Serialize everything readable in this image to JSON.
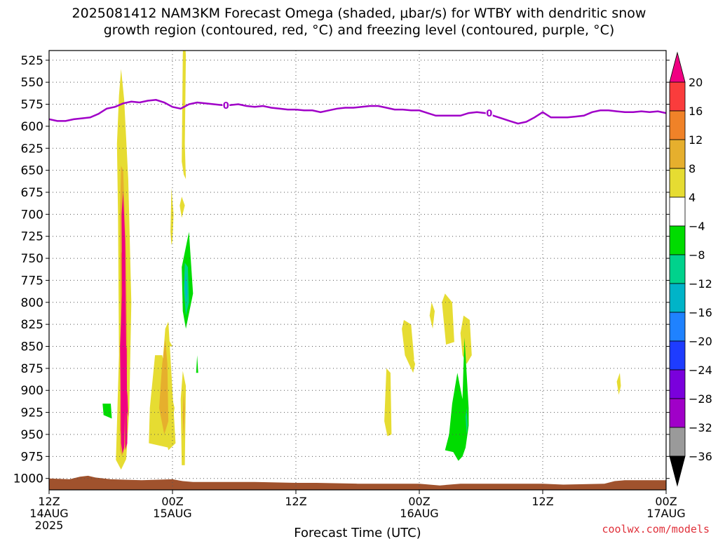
{
  "title": {
    "line1": "2025081412 NAM3KM Forecast Omega (shaded, μbar/s) for WTBY with dendritic snow",
    "line2": "growth region (contoured, red, °C) and freezing level (contoured, purple, °C)"
  },
  "credit": "coolwx.com/models",
  "chart_data": {
    "type": "heatmap",
    "title": "2025081412 NAM3KM Forecast Omega (shaded, μbar/s) for WTBY with dendritic snow growth region (contoured, red, °C) and freezing level (contoured, purple, °C)",
    "xlabel": "Forecast Time (UTC)",
    "ylabel": "",
    "x_unit": "hours from 12Z 14AUG 2025",
    "xlim": [
      0,
      60
    ],
    "ylim": [
      1013,
      500
    ],
    "x_ticks": [
      {
        "x": 0,
        "lines": [
          "12Z",
          "14AUG",
          "2025"
        ]
      },
      {
        "x": 12,
        "lines": [
          "00Z",
          "15AUG"
        ]
      },
      {
        "x": 24,
        "lines": [
          "12Z"
        ]
      },
      {
        "x": 36,
        "lines": [
          "00Z",
          "16AUG"
        ]
      },
      {
        "x": 48,
        "lines": [
          "12Z"
        ]
      },
      {
        "x": 60,
        "lines": [
          "00Z",
          "17AUG"
        ]
      }
    ],
    "y_ticks": [
      525,
      550,
      575,
      600,
      625,
      650,
      675,
      700,
      725,
      750,
      775,
      800,
      825,
      850,
      875,
      900,
      925,
      950,
      975,
      1000
    ],
    "grid": true,
    "colorbar": {
      "label_values": [
        20,
        16,
        12,
        8,
        4,
        -4,
        -8,
        -12,
        -16,
        -20,
        -24,
        -28,
        -32,
        -36
      ],
      "bins": [
        {
          "color": "#d8d8d8",
          "lo": -36,
          "hi": -32,
          "top": false
        },
        {
          "color": "#9a9a9a",
          "lo": -36,
          "hi": -32
        },
        {
          "color": "#a000c8",
          "lo": -32,
          "hi": -28
        },
        {
          "color": "#7a00dc",
          "lo": -28,
          "hi": -24
        },
        {
          "color": "#1e3cff",
          "lo": -24,
          "hi": -20
        },
        {
          "color": "#1f82ff",
          "lo": -20,
          "hi": -16
        },
        {
          "color": "#00b4c8",
          "lo": -16,
          "hi": -12
        },
        {
          "color": "#00d28c",
          "lo": -12,
          "hi": -8
        },
        {
          "color": "#00dc00",
          "lo": -8,
          "hi": -4
        },
        {
          "color": "#ffffff",
          "lo": -4,
          "hi": 4
        },
        {
          "color": "#e6dc32",
          "lo": 4,
          "hi": 8
        },
        {
          "color": "#e6af2d",
          "lo": 8,
          "hi": 12
        },
        {
          "color": "#f08228",
          "lo": 12,
          "hi": 16
        },
        {
          "color": "#fa3c3c",
          "lo": 16,
          "hi": 20
        }
      ],
      "top_color": "#f00082",
      "bottom_color": "#000000"
    },
    "freezing_level": {
      "label": "0",
      "label_at_x": [
        17.2,
        42.8
      ],
      "x": [
        0,
        0.8,
        1.6,
        2.4,
        3.2,
        4.0,
        4.8,
        5.6,
        6.4,
        7.2,
        8.0,
        8.8,
        9.6,
        10.4,
        11.2,
        12.0,
        12.8,
        13.6,
        14.4,
        15.2,
        16.0,
        16.8,
        17.6,
        18.4,
        19.2,
        20.0,
        20.8,
        21.6,
        22.4,
        23.2,
        24.0,
        24.8,
        25.6,
        26.4,
        27.2,
        28.0,
        28.8,
        29.6,
        30.4,
        31.2,
        32.0,
        32.8,
        33.6,
        34.4,
        35.2,
        36.0,
        36.8,
        37.6,
        38.4,
        39.2,
        40.0,
        40.8,
        41.6,
        42.4,
        43.2,
        44.0,
        44.8,
        45.6,
        46.4,
        47.2,
        48.0,
        48.8,
        49.6,
        50.4,
        51.2,
        52.0,
        52.8,
        53.6,
        54.4,
        55.2,
        56.0,
        56.8,
        57.6,
        58.4,
        59.2,
        60.0
      ],
      "p": [
        592,
        594,
        594,
        592,
        591,
        590,
        586,
        580,
        578,
        574,
        572,
        573,
        571,
        570,
        573,
        578,
        580,
        575,
        573,
        574,
        575,
        576,
        576,
        575,
        577,
        578,
        577,
        579,
        580,
        581,
        581,
        582,
        582,
        584,
        582,
        580,
        579,
        579,
        578,
        577,
        577,
        579,
        581,
        581,
        582,
        582,
        585,
        588,
        588,
        588,
        588,
        585,
        584,
        585,
        588,
        591,
        594,
        597,
        595,
        590,
        584,
        590,
        590,
        590,
        589,
        588,
        584,
        582,
        582,
        583,
        584,
        584,
        583,
        584,
        583,
        585
      ]
    },
    "terrain": {
      "color": "#a0522d",
      "x": [
        0,
        2,
        3,
        3.8,
        4.5,
        6,
        9,
        12,
        13,
        14,
        20,
        24,
        26,
        30,
        36,
        38,
        40,
        48,
        50,
        54,
        55,
        56,
        60
      ],
      "p": [
        1000,
        1001,
        998,
        997,
        999,
        1001,
        1002,
        1001,
        1003,
        1004,
        1004,
        1005,
        1005,
        1006,
        1006,
        1008,
        1006,
        1006,
        1007,
        1006,
        1003,
        1002,
        1002
      ]
    },
    "omega_regions": [
      {
        "color": "#e6dc32",
        "points": [
          [
            6.5,
            979
          ],
          [
            6.8,
            860
          ],
          [
            6.7,
            700
          ],
          [
            6.6,
            620
          ],
          [
            6.8,
            565
          ],
          [
            7.0,
            535
          ],
          [
            7.3,
            570
          ],
          [
            7.7,
            660
          ],
          [
            8.0,
            800
          ],
          [
            7.8,
            920
          ],
          [
            7.5,
            978
          ],
          [
            7.0,
            990
          ]
        ]
      },
      {
        "color": "#e6af2d",
        "points": [
          [
            6.9,
            968
          ],
          [
            7.0,
            850
          ],
          [
            6.9,
            700
          ],
          [
            7.0,
            645
          ],
          [
            7.2,
            650
          ],
          [
            7.5,
            745
          ],
          [
            7.6,
            860
          ],
          [
            7.4,
            960
          ],
          [
            7.1,
            975
          ]
        ]
      },
      {
        "color": "#f08228",
        "points": [
          [
            6.9,
            945
          ],
          [
            7.0,
            840
          ],
          [
            7.0,
            745
          ],
          [
            7.3,
            735
          ],
          [
            7.45,
            840
          ],
          [
            7.35,
            945
          ],
          [
            7.1,
            958
          ]
        ]
      },
      {
        "color": "#f00082",
        "points": [
          [
            7.0,
            960
          ],
          [
            6.9,
            850
          ],
          [
            7.1,
            790
          ],
          [
            7.05,
            700
          ],
          [
            7.2,
            675
          ],
          [
            7.4,
            730
          ],
          [
            7.5,
            860
          ],
          [
            7.3,
            965
          ],
          [
            7.15,
            972
          ]
        ]
      },
      {
        "color": "#f00082",
        "points": [
          [
            7.4,
            968
          ],
          [
            7.35,
            860
          ],
          [
            7.55,
            850
          ],
          [
            7.6,
            960
          ]
        ]
      },
      {
        "color": "#f00082",
        "points": [
          [
            7.5,
            920
          ],
          [
            7.6,
            900
          ],
          [
            7.7,
            930
          ]
        ]
      },
      {
        "color": "#e6dc32",
        "points": [
          [
            9.7,
            960
          ],
          [
            9.8,
            920
          ],
          [
            10.3,
            860
          ],
          [
            11.0,
            860
          ],
          [
            12.2,
            920
          ],
          [
            11.6,
            965
          ]
        ]
      },
      {
        "color": "#e6dc32",
        "points": [
          [
            11.3,
            830
          ],
          [
            11.4,
            850
          ],
          [
            12.0,
            850
          ],
          [
            11.5,
            840
          ]
        ]
      },
      {
        "color": "#e6dc32",
        "points": [
          [
            11.0,
            875
          ],
          [
            11.3,
            830
          ],
          [
            11.6,
            822
          ],
          [
            12.3,
            960
          ],
          [
            11.6,
            968
          ],
          [
            11.2,
            945
          ]
        ]
      },
      {
        "color": "#e6af2d",
        "points": [
          [
            10.7,
            920
          ],
          [
            11.0,
            870
          ],
          [
            11.3,
            842
          ],
          [
            11.5,
            870
          ],
          [
            11.6,
            935
          ],
          [
            11.2,
            950
          ]
        ]
      },
      {
        "color": "#e6dc32",
        "points": [
          [
            12.8,
            910
          ],
          [
            13.0,
            878
          ],
          [
            13.3,
            895
          ],
          [
            13.2,
            985
          ],
          [
            12.9,
            985
          ]
        ]
      },
      {
        "color": "#e6af2d",
        "points": [
          [
            13.0,
            930
          ],
          [
            13.1,
            900
          ],
          [
            13.2,
            920
          ],
          [
            13.1,
            955
          ]
        ]
      },
      {
        "color": "#e6dc32",
        "points": [
          [
            12.9,
            640
          ],
          [
            13.0,
            520
          ],
          [
            13.1,
            480
          ],
          [
            13.3,
            520
          ],
          [
            13.2,
            620
          ],
          [
            13.3,
            660
          ],
          [
            13.1,
            655
          ]
        ]
      },
      {
        "color": "#e6dc32",
        "points": [
          [
            12.7,
            690
          ],
          [
            12.9,
            680
          ],
          [
            13.2,
            690
          ],
          [
            12.9,
            704
          ]
        ]
      },
      {
        "color": "#e6dc32",
        "points": [
          [
            11.8,
            720
          ],
          [
            11.9,
            670
          ],
          [
            12.1,
            700
          ],
          [
            12.0,
            730
          ],
          [
            11.9,
            735
          ]
        ]
      },
      {
        "color": "#00dc00",
        "points": [
          [
            13.0,
            810
          ],
          [
            12.9,
            760
          ],
          [
            13.6,
            720
          ],
          [
            14.0,
            790
          ],
          [
            13.3,
            830
          ]
        ]
      },
      {
        "color": "#00d28c",
        "points": [
          [
            13.1,
            785
          ],
          [
            13.2,
            755
          ],
          [
            13.5,
            760
          ],
          [
            13.6,
            800
          ],
          [
            13.3,
            815
          ]
        ]
      },
      {
        "color": "#00b4c8",
        "points": [
          [
            13.2,
            775
          ],
          [
            13.3,
            765
          ],
          [
            13.45,
            790
          ],
          [
            13.3,
            800
          ]
        ]
      },
      {
        "color": "#00dc00",
        "points": [
          [
            14.3,
            880
          ],
          [
            14.4,
            860
          ],
          [
            14.5,
            880
          ]
        ]
      },
      {
        "color": "#00dc00",
        "points": [
          [
            5.2,
            915
          ],
          [
            6.0,
            915
          ],
          [
            6.1,
            932
          ],
          [
            5.3,
            928
          ]
        ]
      },
      {
        "color": "#e6dc32",
        "points": [
          [
            14.7,
            930
          ],
          [
            15.0,
            915
          ],
          [
            14.8,
            925
          ]
        ]
      },
      {
        "color": "#e6dc32",
        "points": [
          [
            32.6,
            935
          ],
          [
            32.8,
            875
          ],
          [
            33.2,
            880
          ],
          [
            33.3,
            950
          ],
          [
            32.9,
            952
          ]
        ]
      },
      {
        "color": "#e6dc32",
        "points": [
          [
            34.3,
            830
          ],
          [
            34.5,
            820
          ],
          [
            35.2,
            825
          ],
          [
            35.5,
            865
          ],
          [
            35.0,
            870
          ],
          [
            34.6,
            860
          ]
        ]
      },
      {
        "color": "#e6dc32",
        "points": [
          [
            35.0,
            870
          ],
          [
            35.3,
            860
          ],
          [
            35.6,
            870
          ],
          [
            35.4,
            880
          ]
        ]
      },
      {
        "color": "#e6dc32",
        "points": [
          [
            37.0,
            815
          ],
          [
            37.2,
            800
          ],
          [
            37.5,
            810
          ],
          [
            37.3,
            830
          ]
        ]
      },
      {
        "color": "#e6dc32",
        "points": [
          [
            38.2,
            800
          ],
          [
            38.5,
            790
          ],
          [
            39.2,
            800
          ],
          [
            39.4,
            845
          ],
          [
            38.6,
            848
          ]
        ]
      },
      {
        "color": "#e6dc32",
        "points": [
          [
            40.0,
            835
          ],
          [
            40.3,
            815
          ],
          [
            40.9,
            820
          ],
          [
            41.1,
            860
          ],
          [
            40.6,
            870
          ],
          [
            40.2,
            860
          ]
        ]
      },
      {
        "color": "#00dc00",
        "points": [
          [
            38.9,
            950
          ],
          [
            39.2,
            915
          ],
          [
            39.7,
            880
          ],
          [
            40.2,
            910
          ],
          [
            40.3,
            870
          ],
          [
            40.4,
            840
          ],
          [
            40.8,
            920
          ],
          [
            40.8,
            940
          ],
          [
            40.5,
            965
          ],
          [
            40.2,
            975
          ],
          [
            39.8,
            980
          ],
          [
            39.3,
            970
          ],
          [
            38.5,
            968
          ]
        ]
      },
      {
        "color": "#00d28c",
        "points": [
          [
            40.5,
            930
          ],
          [
            40.6,
            920
          ],
          [
            40.7,
            940
          ],
          [
            40.6,
            950
          ]
        ]
      },
      {
        "color": "#e6dc32",
        "points": [
          [
            55.2,
            890
          ],
          [
            55.5,
            880
          ],
          [
            55.6,
            895
          ],
          [
            55.4,
            905
          ]
        ]
      }
    ]
  }
}
